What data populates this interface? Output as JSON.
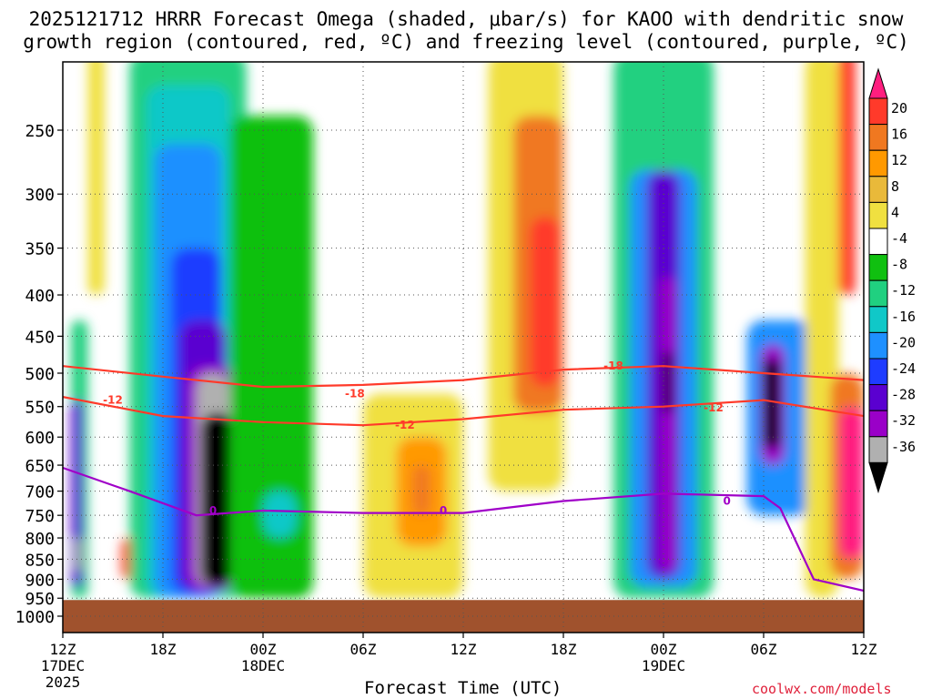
{
  "title_line1": "2025121712 HRRR Forecast Omega (shaded, μbar/s) for KAOO with dendritic snow",
  "title_line2": "growth region (contoured, red, ºC) and freezing level (contoured, purple, ºC)",
  "xlabel": "Forecast Time (UTC)",
  "brand": "coolwx.com/models",
  "chart_data": {
    "type": "heatmap",
    "title": "2025121712 HRRR Forecast Omega (shaded, μbar/s) for KAOO with dendritic snow growth region (contoured, red, ºC) and freezing level (contoured, purple, ºC)",
    "xlabel": "Forecast Time (UTC)",
    "ylabel": "",
    "x_ticks": [
      "12Z",
      "18Z",
      "00Z",
      "06Z",
      "12Z",
      "18Z",
      "00Z",
      "06Z",
      "12Z"
    ],
    "x_date_labels": [
      {
        "tick": "12Z",
        "date": "17DEC",
        "year": "2025"
      },
      {
        "tick": "00Z",
        "date": "18DEC"
      },
      {
        "tick": "00Z",
        "date": "19DEC"
      }
    ],
    "x_range_hours": [
      0,
      48
    ],
    "y_ticks": [
      250,
      300,
      350,
      400,
      450,
      500,
      550,
      600,
      650,
      700,
      750,
      800,
      850,
      900,
      950,
      1000
    ],
    "y_unit": "hPa",
    "y_range": [
      1000,
      200
    ],
    "y_scale": "log",
    "grid": true,
    "colorbar": {
      "unit": "μbar/s",
      "labels": [
        20,
        16,
        12,
        8,
        4,
        -4,
        -8,
        -12,
        -16,
        -20,
        -24,
        -28,
        -32,
        -36
      ],
      "colors": [
        "#ff1e7f",
        "#ff3a2a",
        "#f07820",
        "#ff9900",
        "#e9b93a",
        "#f0e040",
        "#ffffff",
        "#10c010",
        "#20d080",
        "#10c8c8",
        "#1e90ff",
        "#1e3cff",
        "#5a00d0",
        "#9a00c8",
        "#b0b0b0",
        "#000000"
      ]
    },
    "omega_cells": [
      {
        "x": [
          0.5,
          1.5
        ],
        "p": [
          950,
          430
        ],
        "v": -10
      },
      {
        "x": [
          0.5,
          1.2
        ],
        "p": [
          920,
          540
        ],
        "v": -26
      },
      {
        "x": [
          0.7,
          1.1
        ],
        "p": [
          880,
          800
        ],
        "v": -33
      },
      {
        "x": [
          1.5,
          2.5
        ],
        "p": [
          400,
          200
        ],
        "v": 6
      },
      {
        "x": [
          3.5,
          4.5
        ],
        "p": [
          900,
          800
        ],
        "v": 18
      },
      {
        "x": [
          4.0,
          11.0
        ],
        "p": [
          950,
          200
        ],
        "v": -9
      },
      {
        "x": [
          5.0,
          10.0
        ],
        "p": [
          950,
          220
        ],
        "v": -14
      },
      {
        "x": [
          5.5,
          9.5
        ],
        "p": [
          950,
          260
        ],
        "v": -18
      },
      {
        "x": [
          6.5,
          9.5
        ],
        "p": [
          940,
          350
        ],
        "v": -22
      },
      {
        "x": [
          7.0,
          9.8
        ],
        "p": [
          930,
          430
        ],
        "v": -26
      },
      {
        "x": [
          7.5,
          10.3
        ],
        "p": [
          930,
          490
        ],
        "v": -30
      },
      {
        "x": [
          8.0,
          10.0
        ],
        "p": [
          920,
          500
        ],
        "v": -34
      },
      {
        "x": [
          8.3,
          10.2
        ],
        "p": [
          920,
          560
        ],
        "v": -40
      },
      {
        "x": [
          10.0,
          15.0
        ],
        "p": [
          950,
          240
        ],
        "v": -6
      },
      {
        "x": [
          12.0,
          14.0
        ],
        "p": [
          800,
          700
        ],
        "v": -12
      },
      {
        "x": [
          18.0,
          24.0
        ],
        "p": [
          950,
          530
        ],
        "v": 6
      },
      {
        "x": [
          20.0,
          23.0
        ],
        "p": [
          820,
          600
        ],
        "v": 10
      },
      {
        "x": [
          21.0,
          22.0
        ],
        "p": [
          750,
          650
        ],
        "v": 14
      },
      {
        "x": [
          25.5,
          30.0
        ],
        "p": [
          700,
          200
        ],
        "v": 6
      },
      {
        "x": [
          27.0,
          30.0
        ],
        "p": [
          560,
          240
        ],
        "v": 12
      },
      {
        "x": [
          28.0,
          29.8
        ],
        "p": [
          520,
          320
        ],
        "v": 18
      },
      {
        "x": [
          33.0,
          39.0
        ],
        "p": [
          950,
          200
        ],
        "v": -10
      },
      {
        "x": [
          34.0,
          38.0
        ],
        "p": [
          920,
          280
        ],
        "v": -18
      },
      {
        "x": [
          35.0,
          37.0
        ],
        "p": [
          900,
          280
        ],
        "v": -24
      },
      {
        "x": [
          35.8,
          36.7
        ],
        "p": [
          880,
          380
        ],
        "v": -30
      },
      {
        "x": [
          36.0,
          36.5
        ],
        "p": [
          560,
          470
        ],
        "v": -40
      },
      {
        "x": [
          41.0,
          45.0
        ],
        "p": [
          750,
          430
        ],
        "v": -18
      },
      {
        "x": [
          41.8,
          43.3
        ],
        "p": [
          650,
          460
        ],
        "v": -30
      },
      {
        "x": [
          42.0,
          43.0
        ],
        "p": [
          620,
          480
        ],
        "v": -40
      },
      {
        "x": [
          44.5,
          46.5
        ],
        "p": [
          950,
          200
        ],
        "v": 6
      },
      {
        "x": [
          46.0,
          48.0
        ],
        "p": [
          900,
          500
        ],
        "v": 14
      },
      {
        "x": [
          46.5,
          48.0
        ],
        "p": [
          850,
          550
        ],
        "v": 20
      },
      {
        "x": [
          46.5,
          47.5
        ],
        "p": [
          400,
          200
        ],
        "v": 18
      }
    ],
    "series": [
      {
        "name": "-18",
        "color": "#ff3a2a",
        "x": [
          0,
          6,
          12,
          18,
          24,
          30,
          36,
          42,
          48
        ],
        "y": [
          490,
          505,
          520,
          517,
          510,
          495,
          490,
          500,
          510
        ]
      },
      {
        "name": "-12",
        "color": "#ff3a2a",
        "x": [
          0,
          6,
          12,
          18,
          24,
          30,
          36,
          42,
          48
        ],
        "y": [
          535,
          565,
          575,
          580,
          570,
          555,
          550,
          540,
          565
        ]
      },
      {
        "name": "0",
        "color": "#a000c8",
        "x": [
          0,
          4,
          8,
          12,
          18,
          24,
          30,
          36,
          42,
          43,
          45,
          48
        ],
        "y": [
          655,
          700,
          750,
          740,
          745,
          745,
          720,
          705,
          710,
          735,
          900,
          930
        ]
      }
    ],
    "contour_labels": [
      {
        "text": "-18",
        "x": 17.5,
        "p": 530
      },
      {
        "text": "-18",
        "x": 33.0,
        "p": 490
      },
      {
        "text": "-12",
        "x": 3.0,
        "p": 540
      },
      {
        "text": "-12",
        "x": 20.5,
        "p": 580
      },
      {
        "text": "-12",
        "x": 39.0,
        "p": 552
      },
      {
        "text": "0",
        "x": 9.0,
        "p": 740
      },
      {
        "text": "0",
        "x": 22.8,
        "p": 740
      },
      {
        "text": "0",
        "x": 39.8,
        "p": 720
      }
    ],
    "terrain": {
      "color": "#a0522d",
      "surface_p": 970
    }
  }
}
